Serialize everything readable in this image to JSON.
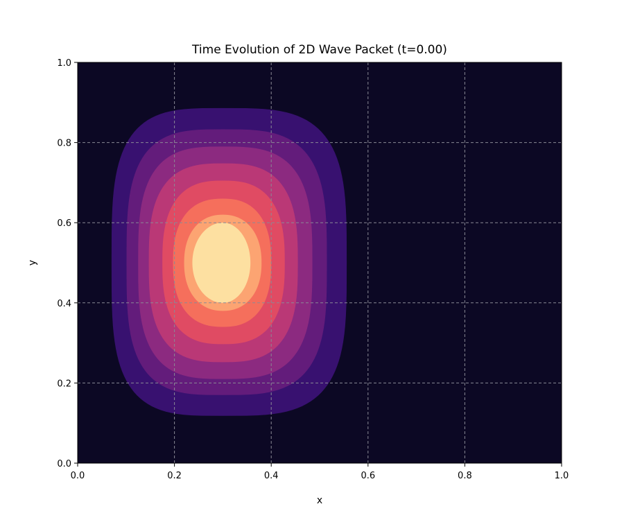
{
  "chart_data": {
    "type": "heatmap",
    "title": "Time Evolution of 2D Wave Packet (t=0.00)",
    "xlabel": "x",
    "ylabel": "y",
    "xlim": [
      0.0,
      1.0
    ],
    "ylim": [
      0.0,
      1.0
    ],
    "xticks": [
      "0.0",
      "0.2",
      "0.4",
      "0.6",
      "0.8",
      "1.0"
    ],
    "yticks": [
      "0.0",
      "0.2",
      "0.4",
      "0.6",
      "0.8",
      "1.0"
    ],
    "grid": true,
    "colormap": "magma",
    "background_color": "#0c0824",
    "packet_center": {
      "x": 0.3,
      "y": 0.5
    },
    "contour_levels": [
      {
        "level": 1,
        "x_min": 0.07,
        "x_max": 0.556,
        "y_min": 0.118,
        "y_max": 0.886,
        "color": "#381170"
      },
      {
        "level": 2,
        "x_min": 0.101,
        "x_max": 0.515,
        "y_min": 0.17,
        "y_max": 0.833,
        "color": "#631c7b"
      },
      {
        "level": 3,
        "x_min": 0.125,
        "x_max": 0.485,
        "y_min": 0.21,
        "y_max": 0.79,
        "color": "#8c2a80"
      },
      {
        "level": 4,
        "x_min": 0.147,
        "x_max": 0.455,
        "y_min": 0.252,
        "y_max": 0.748,
        "color": "#ba3876"
      },
      {
        "level": 5,
        "x_min": 0.175,
        "x_max": 0.428,
        "y_min": 0.297,
        "y_max": 0.705,
        "color": "#e04b63"
      },
      {
        "level": 6,
        "x_min": 0.197,
        "x_max": 0.4,
        "y_min": 0.34,
        "y_max": 0.66,
        "color": "#f56f5c"
      },
      {
        "level": 7,
        "x_min": 0.22,
        "x_max": 0.38,
        "y_min": 0.38,
        "y_max": 0.62,
        "color": "#fca472"
      },
      {
        "level": 8,
        "x_min": 0.237,
        "x_max": 0.357,
        "y_min": 0.4,
        "y_max": 0.6,
        "color": "#fde0a1"
      }
    ]
  }
}
